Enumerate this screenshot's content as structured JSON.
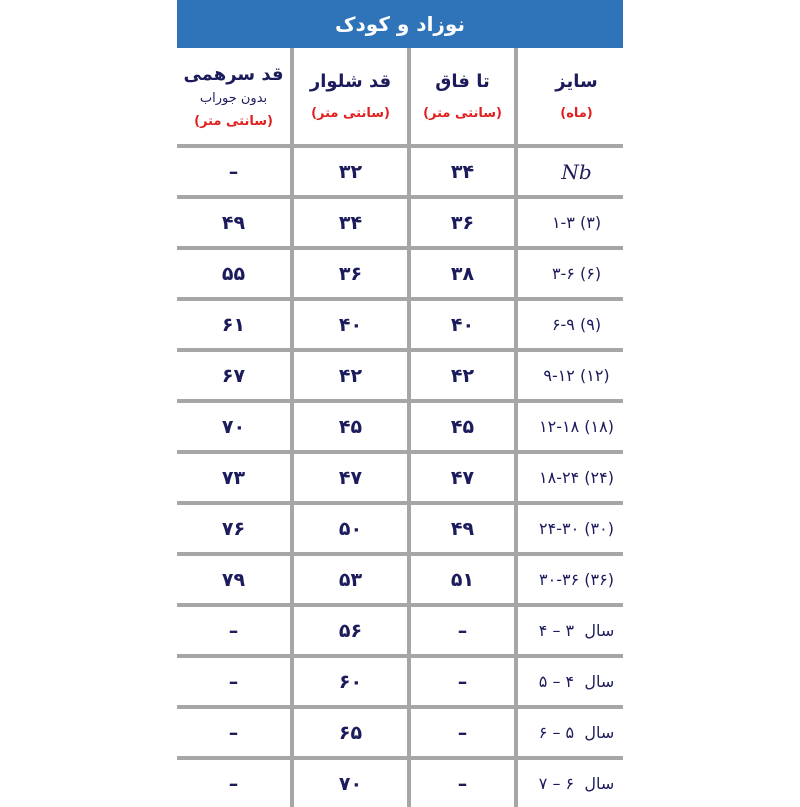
{
  "title": "نوزاد و کودک",
  "headers": {
    "onesie": {
      "label": "قد سرهمی",
      "sub": "بدون جوراب",
      "unit": "(سانتی متر)"
    },
    "pants": {
      "label": "قد شلوار",
      "unit": "(سانتی متر)"
    },
    "rise": {
      "label": "تا فاق",
      "unit": "(سانتی متر)"
    },
    "size": {
      "label": "سایز",
      "unit": "(ماه)"
    }
  },
  "colors": {
    "header_bg": "#2f74b8",
    "text": "#1c1c5c",
    "unit_text": "#e0201f",
    "grid": "#a6a6a6"
  },
  "rows": [
    {
      "onesie": "–",
      "pants": "۳۲",
      "rise": "۳۴",
      "size": "Nb"
    },
    {
      "onesie": "۴۹",
      "pants": "۳۴",
      "rise": "۳۶",
      "size": "۱-۳ (۳)"
    },
    {
      "onesie": "۵۵",
      "pants": "۳۶",
      "rise": "۳۸",
      "size": "۳-۶ (۶)"
    },
    {
      "onesie": "۶۱",
      "pants": "۴۰",
      "rise": "۴۰",
      "size": "۶-۹ (۹)"
    },
    {
      "onesie": "۶۷",
      "pants": "۴۲",
      "rise": "۴۲",
      "size": "۹-۱۲ (۱۲)"
    },
    {
      "onesie": "۷۰",
      "pants": "۴۵",
      "rise": "۴۵",
      "size": "۱۲-۱۸ (۱۸)"
    },
    {
      "onesie": "۷۳",
      "pants": "۴۷",
      "rise": "۴۷",
      "size": "۱۸-۲۴ (۲۴)"
    },
    {
      "onesie": "۷۶",
      "pants": "۵۰",
      "rise": "۴۹",
      "size": "۲۴-۳۰ (۳۰)"
    },
    {
      "onesie": "۷۹",
      "pants": "۵۳",
      "rise": "۵۱",
      "size": "۳۰-۳۶ (۳۶)"
    },
    {
      "onesie": "–",
      "pants": "۵۶",
      "rise": "–",
      "size": "سال  ۳ – ۴"
    },
    {
      "onesie": "–",
      "pants": "۶۰",
      "rise": "–",
      "size": "سال  ۴ – ۵"
    },
    {
      "onesie": "–",
      "pants": "۶۵",
      "rise": "–",
      "size": "سال  ۵ – ۶"
    },
    {
      "onesie": "–",
      "pants": "۷۰",
      "rise": "–",
      "size": "سال  ۶ – ۷"
    }
  ]
}
